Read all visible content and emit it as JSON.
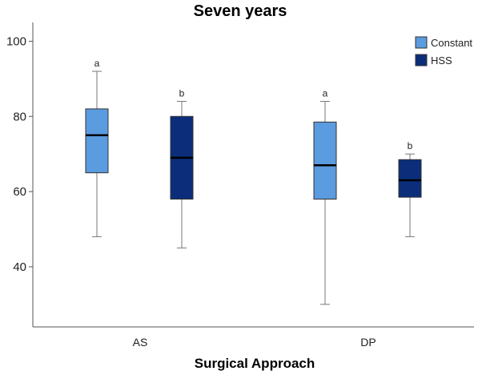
{
  "chart_data": {
    "type": "boxplot",
    "title": "Seven years",
    "xlabel": "Surgical Approach",
    "ylabel": "",
    "ylim": [
      24,
      105
    ],
    "yticks": [
      40,
      60,
      80,
      100
    ],
    "categories": [
      "AS",
      "DP"
    ],
    "legend_position": "top-right",
    "grid": false,
    "series": [
      {
        "name": "Constant",
        "color": "#5b9bdf",
        "boxes": [
          {
            "category": "AS",
            "min": 48,
            "q1": 65,
            "median": 75,
            "q3": 82,
            "max": 92,
            "annotation": "a"
          },
          {
            "category": "DP",
            "min": 30,
            "q1": 58,
            "median": 67,
            "q3": 78.5,
            "max": 84,
            "annotation": "a"
          }
        ]
      },
      {
        "name": "HSS",
        "color": "#0b2d7a",
        "boxes": [
          {
            "category": "AS",
            "min": 45,
            "q1": 58,
            "median": 69,
            "q3": 80,
            "max": 84,
            "annotation": "b"
          },
          {
            "category": "DP",
            "min": 48,
            "q1": 58.5,
            "median": 63,
            "q3": 68.5,
            "max": 70,
            "annotation": "b"
          }
        ]
      }
    ]
  }
}
